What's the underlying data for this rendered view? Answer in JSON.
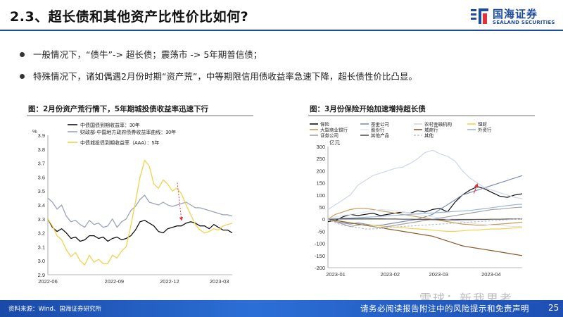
{
  "header": {
    "title": "2.3、超长债和其他资产比性价比如何?",
    "logo_cn": "国海证券",
    "logo_en": "SEALAND SECURITIES"
  },
  "bullets": [
    "一般情况下，“债牛”-> 超长债；震荡市 -> 5年期普信债；",
    "特殊情况下，诸如偶遇2月份时期“资产荒”，中等期限信用债收益率急速下降，超长债性价比凸显。"
  ],
  "figures": {
    "left_title": "图：2月份资产荒行情下，5年期城投债收益率迅速下行",
    "right_title": "图：3月份保险开始加速增持超长债"
  },
  "footer": {
    "source": "资料来源：Wind、国海证券研究所",
    "disclaimer": "请务必阅读报告附注中的风险提示和免责声明",
    "page": "25",
    "watermark": "雪球：新我思考"
  },
  "colors": {
    "brand": "#1e4b9e",
    "footer": "#2b6fd6",
    "series_black": "#111111",
    "series_gray": "#9aa3b5",
    "series_yellow": "#f0d24a",
    "annotation": "#e0323c"
  },
  "chart_data": [
    {
      "type": "line",
      "ylabel": "%",
      "ylim": [
        2.9,
        3.9
      ],
      "yticks": [
        "3.9",
        "3.8",
        "3.7",
        "3.6",
        "3.5",
        "3.4",
        "3.3",
        "3.2",
        "3.1",
        "3.0",
        "2.9"
      ],
      "xticks": [
        "2022-06",
        "2022-09",
        "2022-12",
        "2023-03"
      ],
      "legend_position": "top",
      "legend": [
        "中债国债到期收益率：30年",
        "财政部-中国地方政府债券收益率曲线：30年",
        "中债城投债到期收益率（AAA）：5年"
      ],
      "series": [
        {
          "name": "中债国债到期收益率：30年",
          "color": "#111111",
          "values": [
            3.3,
            3.24,
            3.21,
            3.23,
            3.2,
            3.16,
            3.17,
            3.14,
            3.15,
            3.18,
            3.18,
            3.16,
            3.17,
            3.14,
            3.16,
            3.17,
            3.15,
            3.16,
            3.18,
            3.22,
            3.28,
            3.29,
            3.27,
            3.25,
            3.21,
            3.2,
            3.23,
            3.24,
            3.25,
            3.25,
            3.27,
            3.28,
            3.27,
            3.25,
            3.25,
            3.23,
            3.26,
            3.24,
            3.22,
            3.22,
            3.2
          ]
        },
        {
          "name": "财政部-中国地方政府债券收益率曲线：30年",
          "color": "#9aa3b5",
          "values": [
            3.45,
            3.42,
            3.37,
            3.4,
            3.32,
            3.28,
            3.29,
            3.26,
            3.24,
            3.29,
            3.26,
            3.27,
            3.24,
            3.25,
            3.3,
            3.24,
            3.28,
            3.3,
            3.36,
            3.39,
            3.44,
            3.47,
            3.42,
            3.41,
            3.4,
            3.42,
            3.4,
            3.39,
            3.4,
            3.41,
            3.42,
            3.4,
            3.38,
            3.38,
            3.37,
            3.36,
            3.35,
            3.34,
            3.33,
            3.33,
            3.32
          ]
        },
        {
          "name": "中债城投债到期收益率（AAA）：5年",
          "color": "#f0d24a",
          "values": [
            3.3,
            3.25,
            3.18,
            3.15,
            3.08,
            3.03,
            3.06,
            3.0,
            2.97,
            3.04,
            2.99,
            3.01,
            2.98,
            2.98,
            3.04,
            3.02,
            3.07,
            3.1,
            3.25,
            3.42,
            3.6,
            3.72,
            3.68,
            3.55,
            3.52,
            3.58,
            3.55,
            3.5,
            3.52,
            3.48,
            3.4,
            3.33,
            3.26,
            3.22,
            3.2,
            3.21,
            3.23,
            3.22,
            3.25,
            3.26,
            3.27
          ]
        }
      ],
      "annotation": {
        "type": "arrow",
        "color": "#e0323c",
        "from_value": 3.56,
        "to_value": 3.29
      }
    },
    {
      "type": "line",
      "ylabel": "亿元",
      "ylim": [
        -200,
        300
      ],
      "yticks": [
        "300",
        "250",
        "200",
        "150",
        "100",
        "50",
        "0",
        "-50",
        "-100",
        "-150",
        "-200"
      ],
      "xticks": [
        "2023-01",
        "2023-02",
        "2023-03",
        "2023-04"
      ],
      "legend_position": "top",
      "legend": [
        "保险",
        "基金公司",
        "农村金融机构",
        "理财",
        "大型商业银行",
        "股份行",
        "城商行",
        "外资行",
        "证券公司",
        "其他产品",
        "其他"
      ],
      "series": [
        {
          "name": "保险",
          "color": "#111111",
          "values": [
            -10,
            -5,
            10,
            20,
            15,
            20,
            25,
            15,
            20,
            25,
            30,
            25,
            35,
            30,
            40,
            45,
            30,
            70,
            100,
            120,
            135,
            125,
            110,
            95,
            90,
            100,
            105
          ]
        },
        {
          "name": "基金公司",
          "color": "#7f8fb8",
          "values": [
            0,
            -10,
            -15,
            -20,
            -15,
            -20,
            -25,
            -25,
            -20,
            -15,
            -10,
            -5,
            0,
            10,
            20,
            40,
            60,
            80,
            100,
            110,
            120,
            130,
            140,
            150,
            160,
            170,
            180
          ]
        },
        {
          "name": "农村金融机构",
          "color": "#cfd6e6",
          "values": [
            40,
            60,
            80,
            100,
            140,
            160,
            180,
            190,
            200,
            210,
            215,
            230,
            250,
            275,
            285,
            270,
            260,
            240,
            200,
            170,
            150,
            130,
            120,
            110,
            100,
            90,
            85
          ]
        },
        {
          "name": "理财",
          "color": "#f0d24a",
          "values": [
            0,
            -5,
            -10,
            -15,
            -20,
            -22,
            -25,
            -28,
            -30,
            -32,
            -35,
            -38,
            -40,
            -42,
            -45,
            -48,
            -50,
            -50,
            -48,
            -45,
            -45,
            -42,
            -40,
            -40,
            -38,
            -36,
            -35
          ]
        },
        {
          "name": "大型商业银行",
          "color": "#c99a5a",
          "values": [
            0,
            20,
            30,
            40,
            45,
            45,
            40,
            35,
            30,
            25,
            20,
            15,
            10,
            5,
            0,
            -5,
            -10,
            -15,
            -20,
            -22,
            -25,
            -25,
            -22,
            -20,
            -18,
            -15,
            -12
          ]
        },
        {
          "name": "股份行",
          "color": "#dfe7f5",
          "values": [
            0,
            10,
            15,
            20,
            25,
            30,
            35,
            40,
            38,
            35,
            30,
            25,
            20,
            15,
            10,
            5,
            0,
            -5,
            -10,
            -15,
            -20,
            -22,
            -25,
            -25,
            -28,
            -30,
            -30
          ]
        },
        {
          "name": "城商行",
          "color": "#8c5a2b",
          "values": [
            0,
            -5,
            -10,
            -15,
            -20,
            -25,
            -30,
            -35,
            -40,
            -45,
            -50,
            -55,
            -60,
            -65,
            -70,
            -80,
            -90,
            -100,
            -110,
            -115,
            -120,
            -125,
            -130,
            -135,
            -140,
            -145,
            -150
          ]
        },
        {
          "name": "外资行",
          "color": "#9db7d9",
          "values": [
            0,
            2,
            4,
            5,
            6,
            8,
            10,
            12,
            14,
            16,
            18,
            20,
            22,
            24,
            26,
            28,
            30,
            32,
            34,
            36,
            40,
            44,
            48,
            52,
            56,
            60,
            62
          ]
        },
        {
          "name": "证券公司",
          "color": "#a3a3a3",
          "values": [
            0,
            -10,
            -20,
            -30,
            -25,
            -20,
            -30,
            -35,
            -30,
            -25,
            -20,
            -15,
            -10,
            -5,
            0,
            5,
            10,
            15,
            20,
            25,
            30,
            35,
            40,
            42,
            45,
            48,
            50
          ]
        },
        {
          "name": "其他产品",
          "color": "#555555",
          "values": [
            0,
            0,
            2,
            2,
            3,
            3,
            2,
            2,
            1,
            1,
            0,
            0,
            -1,
            -1,
            -2,
            -2,
            -3,
            -3,
            -2,
            -2,
            -1,
            -1,
            0,
            0,
            1,
            1,
            2
          ]
        },
        {
          "name": "其他",
          "color": "#bfbfbf",
          "dashed": true,
          "values": [
            0,
            -15,
            -25,
            -30,
            -35,
            -40,
            -40,
            -38,
            -35,
            -32,
            -30,
            -28,
            -26,
            -24,
            -22,
            -20,
            -18,
            -16,
            -14,
            -12,
            -10,
            -8,
            -6,
            -4,
            -2,
            0,
            2
          ]
        }
      ],
      "annotation": {
        "type": "arrow",
        "color": "#e0323c",
        "series": "保险",
        "to_value": 140
      }
    }
  ]
}
